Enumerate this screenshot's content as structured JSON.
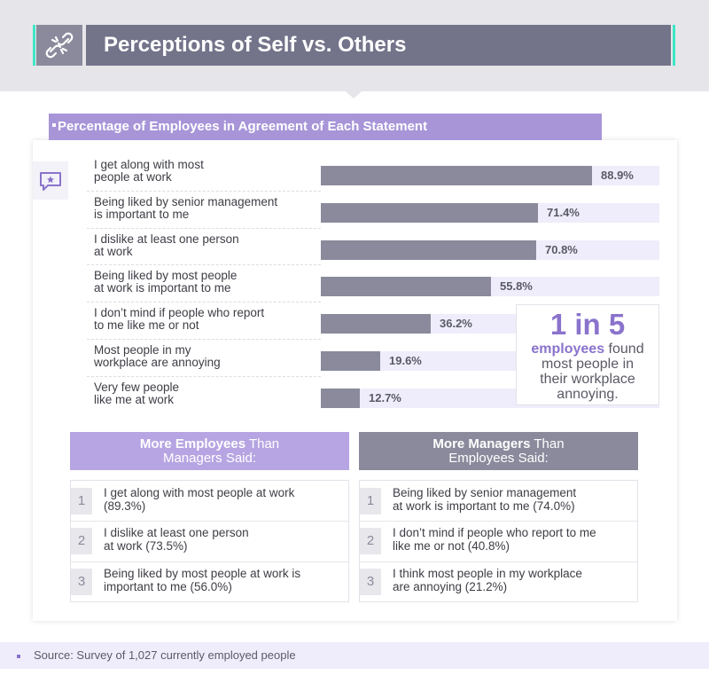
{
  "header": {
    "title": "Perceptions of Self vs. Others",
    "icon": "broken-link-icon",
    "accent_color": "#3ee6c6"
  },
  "subtitle": "Percentage of Employees in Agreement of Each Statement",
  "chart_data": {
    "type": "bar",
    "orientation": "horizontal",
    "title": "Percentage of Employees in Agreement of Each Statement",
    "categories": [
      "I get along with most people at work",
      "Being liked by senior management is important to me",
      "I dislike at least one person at work",
      "Being liked by most people at work is important to me",
      "I don't mind if people who report to me like me or not",
      "Most people in my workplace are annoying",
      "Very few people like me at work"
    ],
    "values": [
      88.9,
      71.4,
      70.8,
      55.8,
      36.2,
      19.6,
      12.7
    ],
    "value_labels": [
      "88.9%",
      "71.4%",
      "70.8%",
      "55.8%",
      "36.2%",
      "19.6%",
      "12.7%"
    ],
    "xlim": [
      0,
      100
    ],
    "bar_color": "#8a8a9c",
    "track_color": "#efedfb"
  },
  "statement_lines": [
    [
      "I get along with most",
      "people at work"
    ],
    [
      "Being liked by senior management",
      "is important to me"
    ],
    [
      "I dislike at least one person",
      "at work"
    ],
    [
      "Being liked by most people",
      "at work is important to me"
    ],
    [
      "I don’t mind if people who report",
      "to me like me or not"
    ],
    [
      "Most people in my",
      "workplace are annoying"
    ],
    [
      "Very few people",
      "like me at work"
    ]
  ],
  "callout": {
    "big": "1 in 5",
    "highlight": "employees",
    "line1_rest": " found",
    "line2": "most people in",
    "line3": "their workplace",
    "line4": "annoying."
  },
  "comparison": {
    "employees": {
      "title_bold": "More Employees",
      "title_rest": " Than",
      "title_line2": "Managers Said:",
      "items": [
        {
          "num": "1",
          "lines": [
            "I get along with most people at work",
            "(89.3%)"
          ]
        },
        {
          "num": "2",
          "lines": [
            "I dislike at least one person",
            "at work (73.5%)"
          ]
        },
        {
          "num": "3",
          "lines": [
            "Being liked by most people at work is",
            "important to me (56.0%)"
          ]
        }
      ]
    },
    "managers": {
      "title_bold": "More Managers",
      "title_rest": " Than",
      "title_line2": "Employees Said:",
      "items": [
        {
          "num": "1",
          "lines": [
            "Being liked by senior management",
            "at work is important to me (74.0%)"
          ]
        },
        {
          "num": "2",
          "lines": [
            "I don’t mind if people who report to me",
            "like me or not (40.8%)"
          ]
        },
        {
          "num": "3",
          "lines": [
            "I think most people in my workplace",
            "are annoying (21.2%)"
          ]
        }
      ]
    }
  },
  "source": "Source: Survey of 1,027 currently employed people",
  "colors": {
    "purple": "#a795d8",
    "purple_text": "#8a73cc",
    "gray": "#8a8a9c",
    "header_gray": "#73738a"
  }
}
